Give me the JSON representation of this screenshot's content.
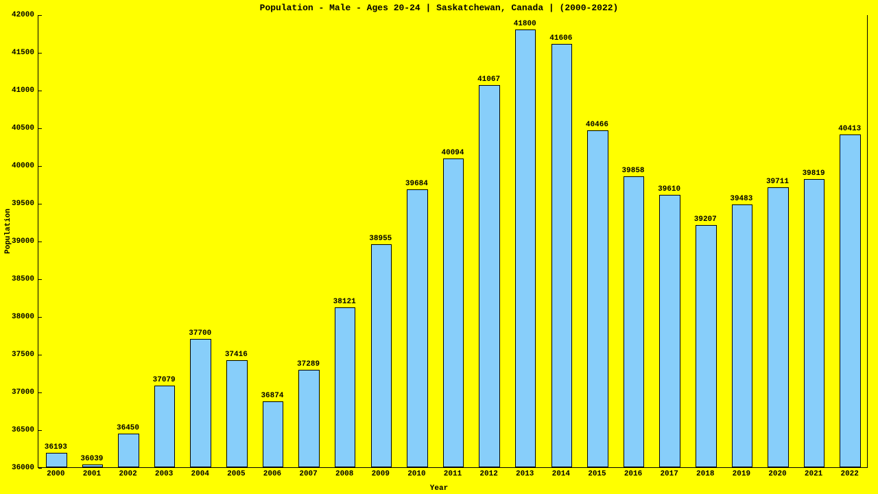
{
  "chart": {
    "type": "bar",
    "title": "Population - Male - Ages 20-24 | Saskatchewan, Canada |  (2000-2022)",
    "title_fontsize": 13,
    "xlabel": "Year",
    "ylabel": "Population",
    "label_fontsize": 11,
    "background_color": "#ffff00",
    "bar_color": "#87cefa",
    "bar_border_color": "#000000",
    "text_color": "#000000",
    "font_family": "Courier New, monospace",
    "ylim": [
      36000,
      42000
    ],
    "ytick_step": 500,
    "bar_width": 0.58,
    "categories": [
      "2000",
      "2001",
      "2002",
      "2003",
      "2004",
      "2005",
      "2006",
      "2007",
      "2008",
      "2009",
      "2010",
      "2011",
      "2012",
      "2013",
      "2014",
      "2015",
      "2016",
      "2017",
      "2018",
      "2019",
      "2020",
      "2021",
      "2022"
    ],
    "values": [
      36193,
      36039,
      36450,
      37079,
      37700,
      37416,
      36874,
      37289,
      38121,
      38955,
      39684,
      40094,
      41067,
      41800,
      41606,
      40466,
      39858,
      39610,
      39207,
      39483,
      39711,
      39819,
      40413
    ]
  }
}
